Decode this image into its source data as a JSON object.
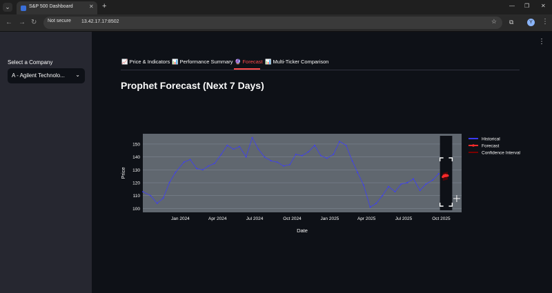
{
  "browser": {
    "tab_title": "S&P 500 Dashboard",
    "not_secure": "Not secure",
    "url": "13.42.17.17:8502"
  },
  "sidebar": {
    "select_label": "Select a Company",
    "select_value": "A - Agilent Technolo..."
  },
  "tabs": [
    {
      "icon": "📈",
      "label": "Price & Indicators"
    },
    {
      "icon": "📊",
      "label": "Performance Summary"
    },
    {
      "icon": "🔮",
      "label": "Forecast",
      "active": true
    },
    {
      "icon": "📊",
      "label": "Multi-Ticker Comparison"
    }
  ],
  "page_title": "Prophet Forecast (Next 7 Days)",
  "colors": {
    "historical": "#3b3bff",
    "forecast": "#ff2b2b",
    "confidence": "#7a0000",
    "accent": "#ff4b4b"
  },
  "chart_data": {
    "type": "line",
    "xlabel": "Date",
    "ylabel": "Price",
    "ylim": [
      97,
      158
    ],
    "yticks": [
      100,
      110,
      120,
      130,
      140,
      150
    ],
    "xticks": [
      "Jan 2024",
      "Apr 2024",
      "Jul 2024",
      "Oct 2024",
      "Jan 2025",
      "Apr 2025",
      "Jul 2025",
      "Oct 2025"
    ],
    "xrange": [
      "2023-10-01",
      "2025-11-20"
    ],
    "legend": [
      "Historical",
      "Forecast",
      "Confidence Interval"
    ],
    "legend_position": "right",
    "series": [
      {
        "name": "Historical",
        "x": [
          "2023-10-01",
          "2023-10-20",
          "2023-11-05",
          "2023-11-20",
          "2023-12-05",
          "2023-12-20",
          "2024-01-10",
          "2024-01-25",
          "2024-02-10",
          "2024-02-25",
          "2024-03-10",
          "2024-03-25",
          "2024-04-10",
          "2024-04-25",
          "2024-05-10",
          "2024-05-25",
          "2024-06-10",
          "2024-06-25",
          "2024-07-10",
          "2024-07-25",
          "2024-08-10",
          "2024-08-25",
          "2024-09-10",
          "2024-09-25",
          "2024-10-10",
          "2024-10-25",
          "2024-11-10",
          "2024-11-25",
          "2024-12-10",
          "2024-12-25",
          "2025-01-10",
          "2025-01-25",
          "2025-02-10",
          "2025-02-25",
          "2025-03-10",
          "2025-03-25",
          "2025-04-10",
          "2025-04-25",
          "2025-05-10",
          "2025-05-25",
          "2025-06-10",
          "2025-06-25",
          "2025-07-10",
          "2025-07-25",
          "2025-08-10",
          "2025-08-25",
          "2025-09-10",
          "2025-09-25"
        ],
        "y": [
          113,
          110,
          104,
          108,
          120,
          128,
          136,
          138,
          131,
          130,
          133,
          135,
          142,
          149,
          146,
          148,
          140,
          155,
          146,
          140,
          137,
          136,
          133,
          134,
          142,
          141,
          144,
          149,
          141,
          139,
          142,
          152,
          149,
          137,
          128,
          118,
          101,
          104,
          110,
          117,
          113,
          119,
          120,
          123,
          114,
          119,
          122,
          127
        ]
      },
      {
        "name": "Forecast",
        "x": [
          "2025-10-05",
          "2025-10-07",
          "2025-10-09",
          "2025-10-11",
          "2025-10-13",
          "2025-10-15",
          "2025-10-17"
        ],
        "y": [
          124.5,
          125.5,
          125.0,
          126.0,
          125.2,
          125.8,
          125.5
        ]
      },
      {
        "name": "Confidence Interval",
        "x": [
          "2025-10-05",
          "2025-10-17"
        ],
        "y_upper": [
          127.5,
          128.5
        ],
        "y_lower": [
          121.5,
          122.5
        ]
      }
    ]
  }
}
